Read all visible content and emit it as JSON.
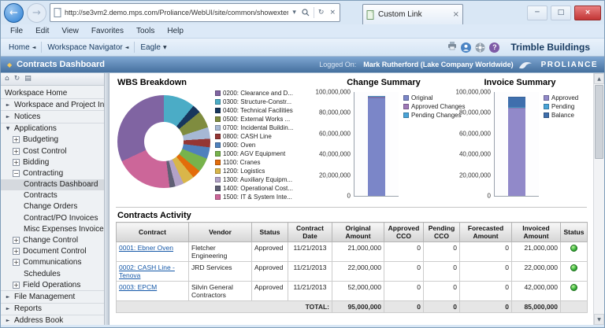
{
  "browser": {
    "url": "http://se3vm2.demo.mps.com/Proliance/WebUI/site/common/showexternallink.aspx?embedurl=http%3a%2",
    "tab_title": "Custom Link",
    "menu": [
      "File",
      "Edit",
      "View",
      "Favorites",
      "Tools",
      "Help"
    ]
  },
  "commandbar": {
    "home": "Home",
    "navigator": "Workspace Navigator",
    "workspace": "Eagle",
    "brand": "Trimble Buildings"
  },
  "app_header": {
    "title": "Contracts Dashboard",
    "logged_on_label": "Logged On:",
    "user": "Mark Rutherford (Lake Company Worldwide)",
    "brand": "PROLIANCE"
  },
  "sidebar": {
    "items": [
      {
        "label": "Workspace Home",
        "level": 0,
        "marker": "none"
      },
      {
        "label": "Workspace and Project Info",
        "level": 0,
        "marker": "arrow"
      },
      {
        "label": "Notices",
        "level": 0,
        "marker": "arrow"
      },
      {
        "label": "Applications",
        "level": 0,
        "marker": "arrow-down"
      },
      {
        "label": "Budgeting",
        "level": 1,
        "marker": "plus"
      },
      {
        "label": "Cost Control",
        "level": 1,
        "marker": "plus"
      },
      {
        "label": "Bidding",
        "level": 1,
        "marker": "plus"
      },
      {
        "label": "Contracting",
        "level": 1,
        "marker": "minus"
      },
      {
        "label": "Contracts Dashboard",
        "level": 2,
        "marker": "none",
        "selected": true
      },
      {
        "label": "Contracts",
        "level": 2,
        "marker": "none"
      },
      {
        "label": "Change Orders",
        "level": 2,
        "marker": "none"
      },
      {
        "label": "Contract/PO Invoices",
        "level": 2,
        "marker": "none"
      },
      {
        "label": "Misc Expenses Invoice",
        "level": 2,
        "marker": "none"
      },
      {
        "label": "Change Control",
        "level": 1,
        "marker": "plus"
      },
      {
        "label": "Document Control",
        "level": 1,
        "marker": "plus"
      },
      {
        "label": "Communications",
        "level": 1,
        "marker": "plus"
      },
      {
        "label": "Schedules",
        "level": 2,
        "marker": "none"
      },
      {
        "label": "Field Operations",
        "level": 1,
        "marker": "plus"
      },
      {
        "label": "File Management",
        "level": 0,
        "marker": "arrow"
      },
      {
        "label": "Reports",
        "level": 0,
        "marker": "arrow"
      },
      {
        "label": "Address Book",
        "level": 0,
        "marker": "arrow"
      }
    ]
  },
  "chart_data": [
    {
      "type": "pie",
      "donut": true,
      "title": "WBS Breakdown",
      "legend_position": "right",
      "slices": [
        {
          "label": "0200: Clearance and D...",
          "value": 32,
          "color": "#8064a2"
        },
        {
          "label": "0300: Structure-Constr...",
          "value": 11,
          "color": "#4bacc6"
        },
        {
          "label": "0400: Technical Facilities",
          "value": 3,
          "color": "#17365d"
        },
        {
          "label": "0500: External Works ...",
          "value": 6,
          "color": "#7f8c3f"
        },
        {
          "label": "0700: Incidental Buildin...",
          "value": 4,
          "color": "#a6b8d4"
        },
        {
          "label": "0800: CASH Line",
          "value": 3,
          "color": "#943634"
        },
        {
          "label": "0900: Oven",
          "value": 4,
          "color": "#4f81bd"
        },
        {
          "label": "1000: AGV Equipment",
          "value": 5,
          "color": "#77b34c"
        },
        {
          "label": "1100: Cranes",
          "value": 3,
          "color": "#e36c0a"
        },
        {
          "label": "1200: Logistics",
          "value": 4,
          "color": "#d9b64a"
        },
        {
          "label": "1300: Auxiliary Equipm...",
          "value": 3,
          "color": "#b2a2c7"
        },
        {
          "label": "1400: Operational Cost...",
          "value": 2,
          "color": "#5f5f74"
        },
        {
          "label": "1500: IT & System Inte...",
          "value": 20,
          "color": "#cc6699"
        }
      ]
    },
    {
      "type": "bar",
      "title": "Change Summary",
      "stacked": false,
      "ymax": 100000000,
      "ylim": [
        0,
        100000000
      ],
      "yticks": [
        "100,000,000",
        "80,000,000",
        "60,000,000",
        "40,000,000",
        "20,000,000",
        "0"
      ],
      "legend_position": "right",
      "series": [
        {
          "name": "Original",
          "value": 95000000,
          "color": "#7b86c8"
        },
        {
          "name": "Approved Changes",
          "value": 0,
          "color": "#9f79b8"
        },
        {
          "name": "Pending Changes",
          "value": 0,
          "color": "#4aa4d8"
        }
      ]
    },
    {
      "type": "bar",
      "title": "Invoice Summary",
      "stacked": true,
      "ymax": 100000000,
      "ylim": [
        0,
        100000000
      ],
      "yticks": [
        "100,000,000",
        "80,000,000",
        "60,000,000",
        "40,000,000",
        "20,000,000",
        "0"
      ],
      "legend_position": "right",
      "series": [
        {
          "name": "Approved",
          "value": 85000000,
          "color": "#9189c9"
        },
        {
          "name": "Pending",
          "value": 0,
          "color": "#4aa4d8"
        },
        {
          "name": "Balance",
          "value": 10000000,
          "color": "#3f6fad"
        }
      ]
    }
  ],
  "table": {
    "title": "Contracts Activity",
    "columns": [
      "Contract",
      "Vendor",
      "Status",
      "Contract Date",
      "Original Amount",
      "Approved CCO",
      "Pending CCO",
      "Forecasted Amount",
      "Invoiced Amount",
      "Status"
    ],
    "rows": [
      {
        "contract": "0001: Ebner Oven",
        "vendor": "Fletcher Engineering",
        "status": "Approved",
        "date": "11/21/2013",
        "original": "21,000,000",
        "approved_cco": "0",
        "pending_cco": "0",
        "forecasted": "0",
        "invoiced": "21,000,000",
        "health": "green"
      },
      {
        "contract": "0002: CASH Line - Tenova",
        "vendor": "JRD Services",
        "status": "Approved",
        "date": "11/21/2013",
        "original": "22,000,000",
        "approved_cco": "0",
        "pending_cco": "0",
        "forecasted": "0",
        "invoiced": "22,000,000",
        "health": "green"
      },
      {
        "contract": "0003: EPCM",
        "vendor": "Silvin General Contractors",
        "status": "Approved",
        "date": "11/21/2013",
        "original": "52,000,000",
        "approved_cco": "0",
        "pending_cco": "0",
        "forecasted": "0",
        "invoiced": "42,000,000",
        "health": "green"
      }
    ],
    "total": {
      "label": "TOTAL:",
      "original": "95,000,000",
      "approved_cco": "0",
      "pending_cco": "0",
      "forecasted": "0",
      "invoiced": "85,000,000"
    }
  }
}
